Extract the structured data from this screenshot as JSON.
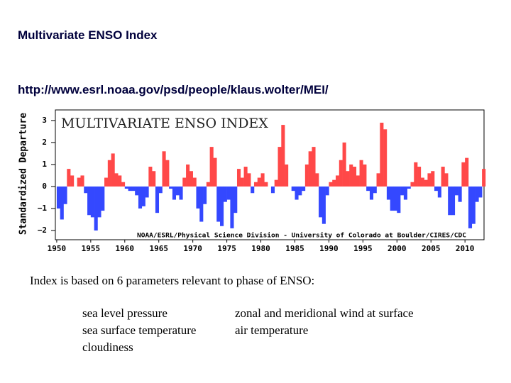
{
  "title": "Multivariate ENSO Index",
  "url": "http://www.esrl.noaa.gov/psd/people/klaus.wolter/MEI/",
  "description": "Index is based on 6 parameters relevant to phase of ENSO:",
  "parameters": [
    [
      "sea level pressure",
      "sea surface temperature",
      "cloudiness"
    ],
    [
      "zonal and meridional wind at surface",
      "air temperature"
    ]
  ],
  "chart_data": {
    "type": "area",
    "title": "MULTIVARIATE ENSO INDEX",
    "credit": "NOAA/ESRL/Physical Science Division - University of Colorado at Boulder/CIRES/CDC",
    "y_label": "Standardized Departure",
    "positive_color": "#ff4848",
    "negative_color": "#3448ff",
    "xlim": [
      1949.8,
      2012.8
    ],
    "xticks": [
      1950,
      1955,
      1960,
      1965,
      1970,
      1975,
      1980,
      1985,
      1990,
      1995,
      2000,
      2005,
      2010
    ],
    "ylim": [
      -2.42,
      3.48
    ],
    "yticks": [
      3,
      2,
      1,
      0,
      {
        "value": -1,
        "label": "−1"
      },
      {
        "value": -2,
        "label": "−2"
      }
    ],
    "x": [
      1950,
      1950.5,
      1951,
      1951.5,
      1952,
      1952.5,
      1953,
      1953.5,
      1954,
      1954.5,
      1955,
      1955.5,
      1956,
      1956.5,
      1957,
      1957.5,
      1958,
      1958.5,
      1959,
      1959.5,
      1960,
      1960.5,
      1961,
      1961.5,
      1962,
      1962.5,
      1963,
      1963.5,
      1964,
      1964.5,
      1965,
      1965.5,
      1966,
      1966.5,
      1967,
      1967.5,
      1968,
      1968.5,
      1969,
      1969.5,
      1970,
      1970.5,
      1971,
      1971.5,
      1972,
      1972.5,
      1973,
      1973.5,
      1974,
      1974.5,
      1975,
      1975.5,
      1976,
      1976.5,
      1977,
      1977.5,
      1978,
      1978.5,
      1979,
      1979.5,
      1980,
      1980.5,
      1981,
      1981.5,
      1982,
      1982.5,
      1983,
      1983.5,
      1984,
      1984.5,
      1985,
      1985.5,
      1986,
      1986.5,
      1987,
      1987.5,
      1988,
      1988.5,
      1989,
      1989.5,
      1990,
      1990.5,
      1991,
      1991.5,
      1992,
      1992.5,
      1993,
      1993.5,
      1994,
      1994.5,
      1995,
      1995.5,
      1996,
      1996.5,
      1997,
      1997.5,
      1998,
      1998.5,
      1999,
      1999.5,
      2000,
      2000.5,
      2001,
      2001.5,
      2002,
      2002.5,
      2003,
      2003.5,
      2004,
      2004.5,
      2005,
      2005.5,
      2006,
      2006.5,
      2007,
      2007.5,
      2008,
      2008.5,
      2009,
      2009.5,
      2010,
      2010.5,
      2011,
      2011.5,
      2012,
      2012.5
    ],
    "values": [
      -1.0,
      -1.5,
      -0.8,
      0.8,
      0.5,
      0.0,
      0.4,
      0.5,
      -0.3,
      -1.3,
      -1.4,
      -2.0,
      -1.4,
      -1.1,
      0.4,
      1.2,
      1.5,
      0.6,
      0.5,
      0.2,
      -0.1,
      -0.2,
      -0.2,
      -0.4,
      -1.0,
      -0.9,
      -0.5,
      0.9,
      0.7,
      -1.2,
      -0.3,
      1.6,
      1.2,
      -0.1,
      -0.6,
      -0.4,
      -0.6,
      0.4,
      1.0,
      0.7,
      0.4,
      -1.0,
      -1.6,
      -0.8,
      0.2,
      1.8,
      1.3,
      -1.6,
      -1.8,
      -0.7,
      -0.6,
      -1.9,
      -1.2,
      0.8,
      0.4,
      0.9,
      0.6,
      -0.3,
      0.2,
      0.4,
      0.6,
      0.2,
      0.0,
      -0.3,
      0.3,
      1.8,
      2.8,
      1.0,
      0.0,
      -0.2,
      -0.6,
      -0.4,
      -0.2,
      1.0,
      1.6,
      1.8,
      0.6,
      -1.4,
      -1.7,
      -0.4,
      0.2,
      0.3,
      0.5,
      1.2,
      2.0,
      0.7,
      1.0,
      0.9,
      0.5,
      1.2,
      1.0,
      -0.2,
      -0.6,
      -0.3,
      0.6,
      2.9,
      2.6,
      -0.6,
      -1.1,
      -1.1,
      -1.2,
      -0.4,
      -0.6,
      -0.1,
      0.2,
      1.1,
      0.9,
      0.4,
      0.3,
      0.6,
      0.7,
      -0.2,
      -0.5,
      0.9,
      0.6,
      -1.3,
      -1.3,
      -0.4,
      -0.7,
      1.1,
      1.3,
      -1.9,
      -1.7,
      -0.7,
      -0.5,
      0.8
    ]
  }
}
